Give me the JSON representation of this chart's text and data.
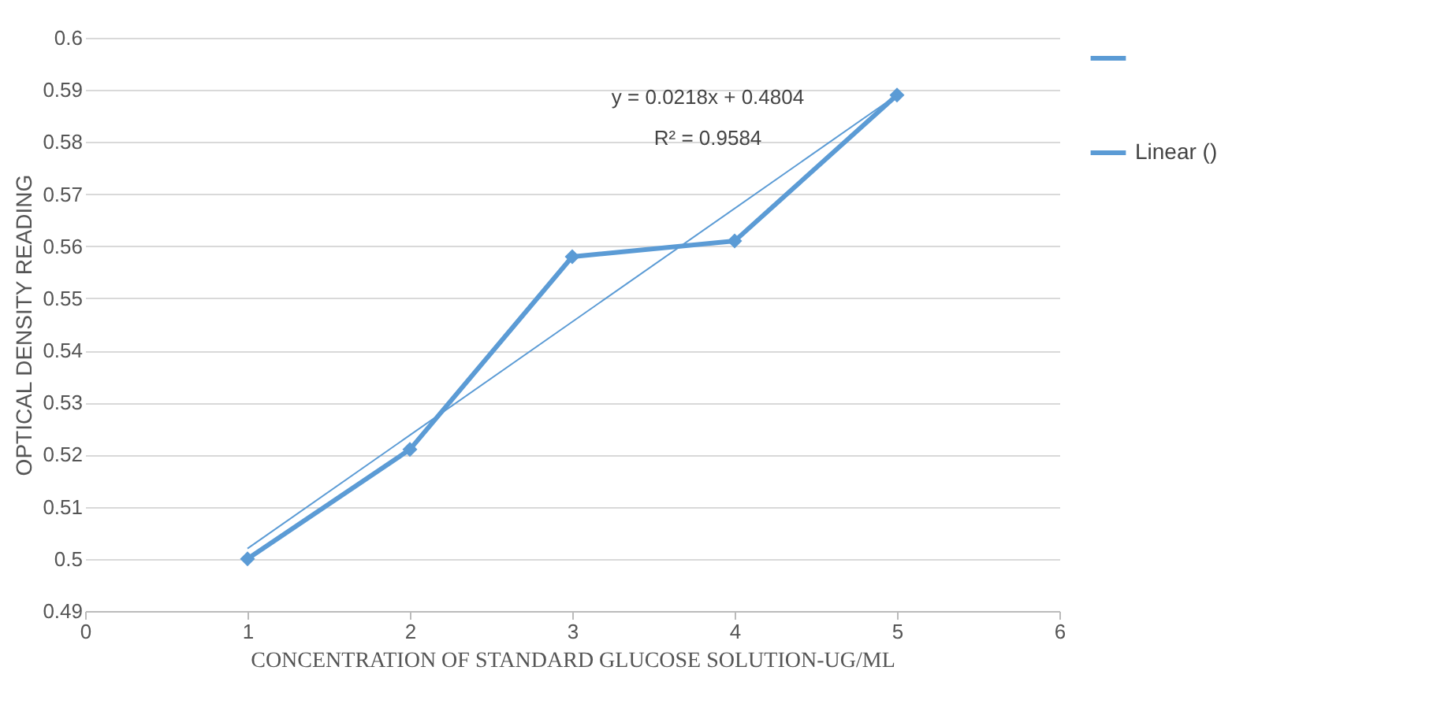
{
  "chart_data": {
    "type": "line",
    "xlabel": "CONCENTRATION OF STANDARD GLUCOSE SOLUTION-UG/ML",
    "ylabel": "OPTICAL DENSITY READING",
    "x": [
      1,
      2,
      3,
      4,
      5
    ],
    "series": [
      {
        "color": "#5b9bd5",
        "values": [
          0.5,
          0.521,
          0.558,
          0.561,
          0.589
        ],
        "marker": "diamond"
      },
      {
        "name": "Linear ()",
        "color": "#5b9bd5",
        "type": "line",
        "x": [
          1,
          5
        ],
        "values": [
          0.502,
          0.589
        ],
        "marker": "none"
      }
    ],
    "xlim": [
      0,
      6
    ],
    "xticks": [
      0,
      1,
      2,
      3,
      4,
      5,
      6
    ],
    "ylim": [
      0.49,
      0.6
    ],
    "yticks": [
      0.49,
      0.5,
      0.51,
      0.52,
      0.53,
      0.54,
      0.55,
      0.56,
      0.57,
      0.58,
      0.59,
      0.6
    ],
    "annotations": [
      "y = 0.0218x + 0.4804",
      "R² = 0.9584"
    ],
    "grid": "y",
    "legend": "right"
  }
}
